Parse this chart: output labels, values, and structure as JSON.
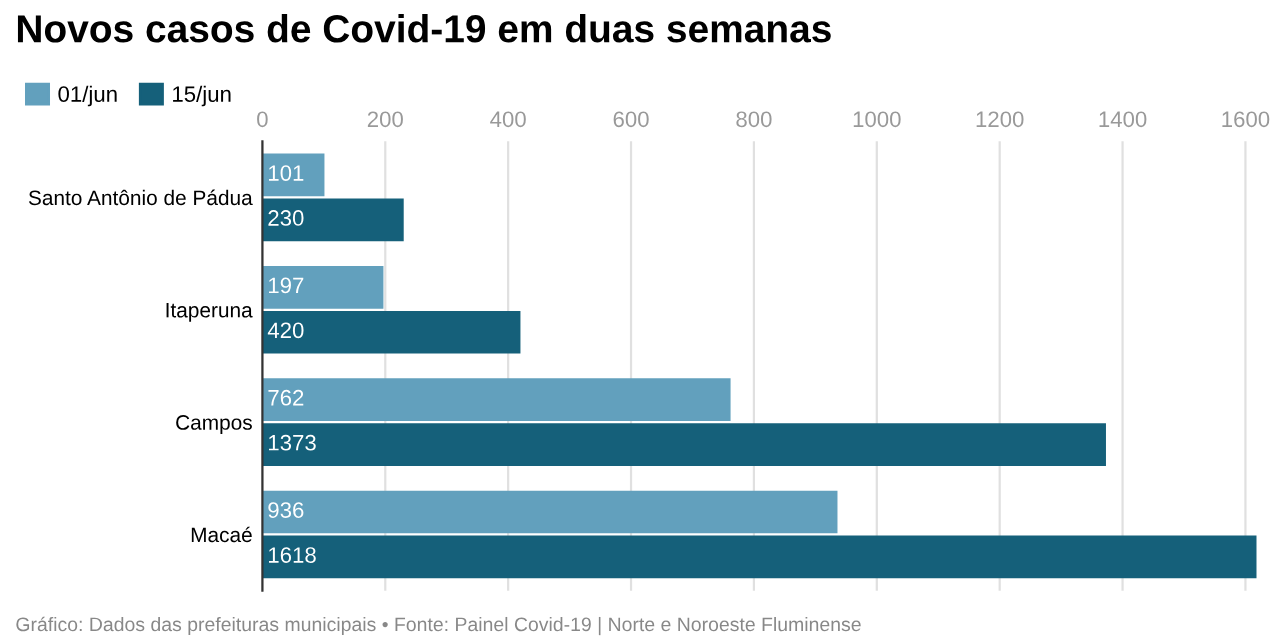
{
  "chart_data": {
    "type": "bar",
    "orientation": "horizontal",
    "title": "Novos casos de Covid-19 em duas semanas",
    "categories": [
      "Santo Antônio de Pádua",
      "Itaperuna",
      "Campos",
      "Macaé"
    ],
    "series": [
      {
        "name": "01/jun",
        "color": "#62a0bd",
        "values": [
          101,
          197,
          762,
          936
        ]
      },
      {
        "name": "15/jun",
        "color": "#15607a",
        "values": [
          230,
          420,
          1373,
          1618
        ]
      }
    ],
    "xlim": [
      0,
      1625
    ],
    "xticks": [
      0,
      200,
      400,
      600,
      800,
      1000,
      1200,
      1400,
      1600
    ],
    "data_labels": true,
    "legend": "top left",
    "grid": "x",
    "annotations": [
      "Gráfico: Dados das prefeituras municipais • Fonte: Painel Covid-19 | Norte e Noroeste Fluminense"
    ]
  }
}
